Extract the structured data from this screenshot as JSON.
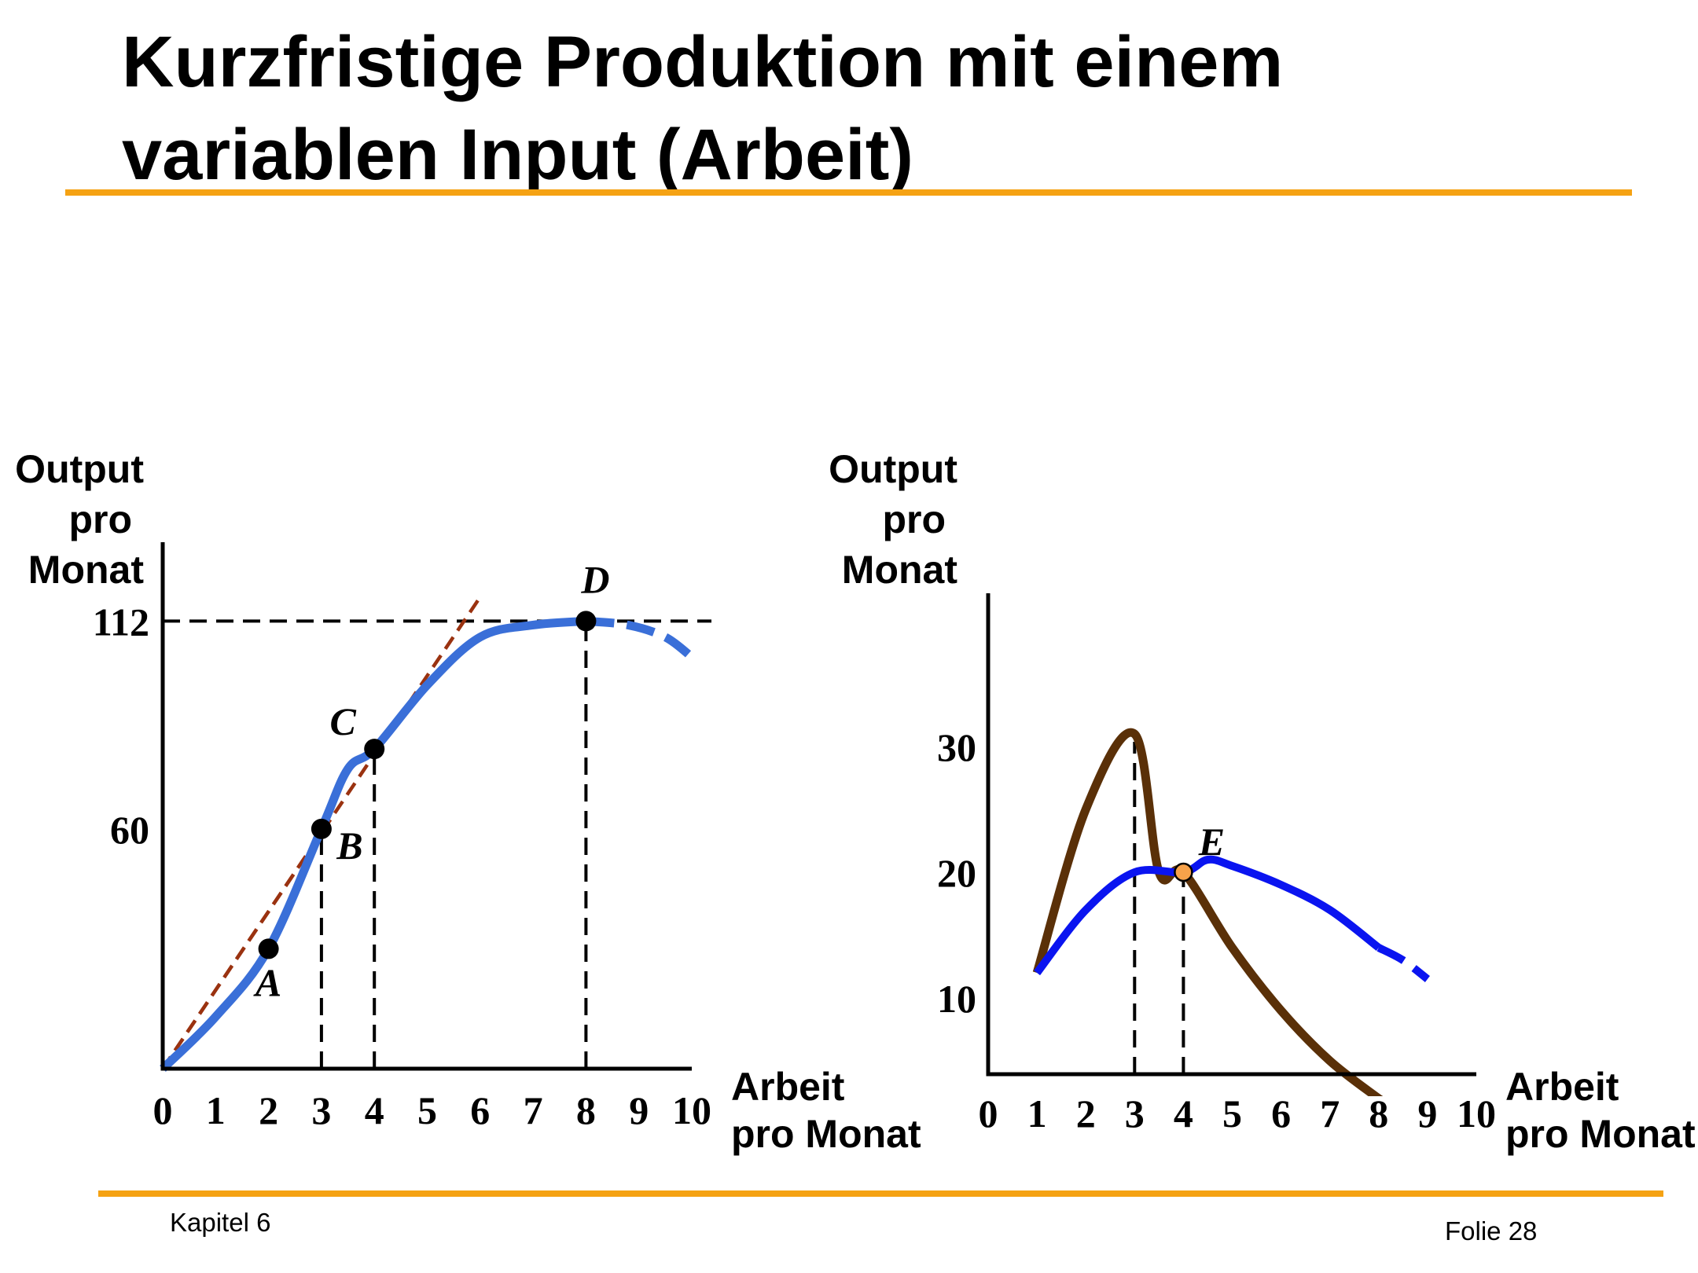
{
  "title_lines": [
    "Kurzfristige Produktion mit einem",
    "variablen Input (Arbeit)"
  ],
  "footer": {
    "left": "Kapitel 6",
    "right": "Folie 28"
  },
  "colors": {
    "accent_rule": "#f5a213",
    "total_product_curve": "#3a6fd8",
    "tangent_lines": "#9a3210",
    "marginal_curve": "#5a3008",
    "average_curve": "#0a14f0",
    "point_e_fill": "#f7a24a"
  },
  "chart_data": [
    {
      "type": "line",
      "ylabel_lines": [
        "Output",
        "pro",
        "Monat"
      ],
      "xlabel_lines": [
        "Arbeit",
        "pro Monat"
      ],
      "xlim": [
        0,
        10
      ],
      "ylim": [
        0,
        140
      ],
      "x_ticks": [
        "0",
        "1",
        "2",
        "3",
        "4",
        "5",
        "6",
        "7",
        "8",
        "9",
        "10"
      ],
      "y_ticks": [
        "60",
        "112"
      ],
      "series": [
        {
          "style": "solid",
          "x": [
            0,
            1,
            2,
            3,
            3.5,
            4,
            5,
            6,
            7,
            8
          ],
          "y": [
            0,
            13,
            30,
            60,
            75,
            80,
            96,
            108,
            111,
            112
          ]
        },
        {
          "style": "dashed",
          "x": [
            8,
            8.8,
            9.5,
            10
          ],
          "y": [
            112,
            111,
            108,
            103
          ]
        }
      ],
      "tangents": [
        {
          "x": [
            0,
            3.05
          ],
          "y": [
            0,
            60
          ]
        },
        {
          "x": [
            0,
            6
          ],
          "y": [
            0,
            118
          ]
        }
      ],
      "points": [
        {
          "label": "A",
          "x": 2,
          "y": 30
        },
        {
          "label": "B",
          "x": 3,
          "y": 60
        },
        {
          "label": "C",
          "x": 4,
          "y": 80
        },
        {
          "label": "D",
          "x": 8,
          "y": 112
        }
      ],
      "reference_lines": [
        {
          "orientation": "horizontal",
          "y": 112
        },
        {
          "orientation": "vertical",
          "x": 3
        },
        {
          "orientation": "vertical",
          "x": 4
        },
        {
          "orientation": "vertical",
          "x": 8
        }
      ]
    },
    {
      "type": "line",
      "ylabel_lines": [
        "Output",
        "pro",
        "Monat"
      ],
      "xlabel_lines": [
        "Arbeit",
        "pro Monat"
      ],
      "xlim": [
        0,
        10
      ],
      "ylim": [
        5,
        42
      ],
      "x_ticks": [
        "0",
        "1",
        "2",
        "3",
        "4",
        "5",
        "6",
        "7",
        "8",
        "9",
        "10"
      ],
      "y_ticks": [
        "10",
        "20",
        "30"
      ],
      "series": [
        {
          "style": "solid",
          "curve": "marginal",
          "x": [
            1,
            2,
            3,
            3.5,
            4,
            5,
            6,
            7,
            8
          ],
          "y": [
            12,
            25,
            31,
            20,
            20,
            14,
            9,
            5,
            2
          ]
        },
        {
          "style": "dotted",
          "curve": "marginal",
          "x": [
            8,
            8.8
          ],
          "y": [
            2,
            0
          ]
        },
        {
          "style": "solid",
          "curve": "average",
          "x": [
            1,
            2,
            3,
            4,
            4.5,
            5,
            6,
            7,
            8
          ],
          "y": [
            12,
            17,
            20,
            20,
            21,
            20.5,
            19,
            17,
            14
          ]
        },
        {
          "style": "dashed",
          "curve": "average",
          "x": [
            8,
            8.5,
            9
          ],
          "y": [
            14,
            13,
            11.5
          ]
        }
      ],
      "points": [
        {
          "label": "E",
          "x": 4,
          "y": 20
        }
      ],
      "reference_lines": [
        {
          "orientation": "vertical",
          "x": 3
        },
        {
          "orientation": "vertical",
          "x": 4
        }
      ]
    }
  ]
}
